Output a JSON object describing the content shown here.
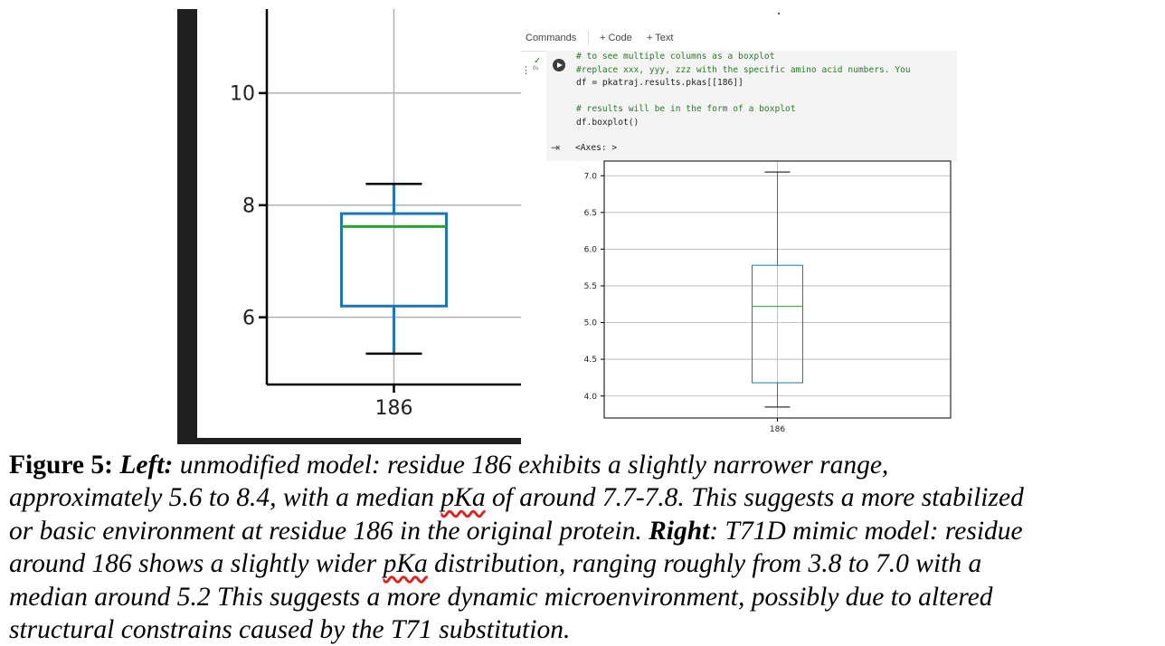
{
  "colab": {
    "commands_label": "Commands",
    "code_label": "+ Code",
    "text_label": "+ Text",
    "run_time": "0s",
    "code_lines": [
      "# to see multiple columns as a boxplot",
      "#replace xxx, yyy, zzz with the specific amino acid numbers. You",
      "df = pkatraj.results.pkas[[186]]",
      "",
      "# results will be in the form of a boxplot",
      "df.boxplot()"
    ],
    "output_label": "<Axes: >"
  },
  "chart_data": [
    {
      "type": "boxplot",
      "categories": [
        "186"
      ],
      "yticks": [
        6,
        8,
        10
      ],
      "ylim": [
        4.8,
        11.5
      ],
      "grid": true,
      "boxes": [
        {
          "category": "186",
          "whislo": 5.35,
          "q1": 6.2,
          "median": 7.62,
          "q3": 7.85,
          "whishi": 8.38
        }
      ],
      "colors": {
        "box": "#1f77b4",
        "median": "#2ca02c",
        "grid": "#b0b0b0"
      }
    },
    {
      "type": "boxplot",
      "categories": [
        "186"
      ],
      "yticks": [
        4.0,
        4.5,
        5.0,
        5.5,
        6.0,
        6.5,
        7.0
      ],
      "ylim": [
        3.7,
        7.2
      ],
      "grid": true,
      "boxes": [
        {
          "category": "186",
          "whislo": 3.85,
          "q1": 4.18,
          "median": 5.22,
          "q3": 5.78,
          "whishi": 7.05
        }
      ],
      "colors": {
        "box": "#1f77b4",
        "median": "#2ca02c",
        "grid": "#b0b0b0"
      }
    }
  ],
  "caption": {
    "label": "Figure 5:",
    "left_label": "Left:",
    "line1_rest": " unmodified model: residue 186 exhibits a slightly narrower range,",
    "line2_a": "approximately 5.6 to 8.4, with a median ",
    "pka1": "pKa",
    "line2_b": " of around 7.7-7.8. This suggests a more stabilized",
    "line3_a": "or basic environment at residue 186 in the original protein. ",
    "right_label": "Right",
    "line3_b": ": T71D mimic model: residue",
    "line4_a": "around 186 shows a slightly wider ",
    "pka2": "pKa",
    "line4_b": " distribution, ranging roughly from 3.8 to 7.0 with a",
    "line5": "median around 5.2 This suggests a more dynamic microenvironment, possibly due to altered",
    "line6": "structural constrains caused by the T71 substitution."
  }
}
